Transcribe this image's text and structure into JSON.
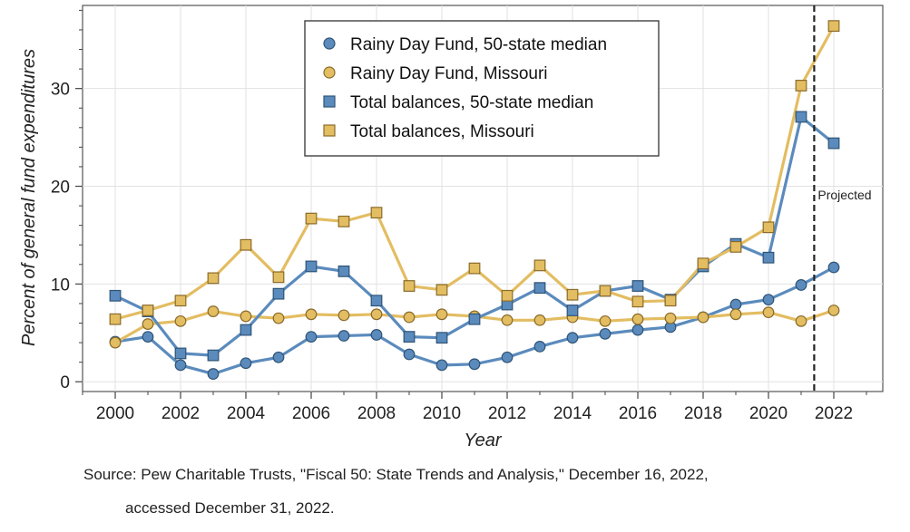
{
  "chart_data": {
    "type": "line",
    "xlabel": "Year",
    "ylabel": "Percent of general fund expenditures",
    "xlim": [
      1999,
      2023.5
    ],
    "ylim": [
      -1,
      38.5
    ],
    "x_ticks": [
      2000,
      2002,
      2004,
      2006,
      2008,
      2010,
      2012,
      2014,
      2016,
      2018,
      2020,
      2022
    ],
    "y_ticks": [
      0,
      10,
      20,
      30
    ],
    "grid": true,
    "legend_position": "top-center",
    "x": [
      2000,
      2001,
      2002,
      2003,
      2004,
      2005,
      2006,
      2007,
      2008,
      2009,
      2010,
      2011,
      2012,
      2013,
      2014,
      2015,
      2016,
      2017,
      2018,
      2019,
      2020,
      2021,
      2022
    ],
    "series": [
      {
        "name": "Rainy Day Fund, 50-state median",
        "marker": "circle",
        "color": "#5b8bbd",
        "values": [
          4.1,
          4.6,
          1.7,
          0.8,
          1.9,
          2.5,
          4.6,
          4.7,
          4.8,
          2.8,
          1.7,
          1.8,
          2.5,
          3.6,
          4.5,
          4.9,
          5.3,
          5.6,
          6.6,
          7.9,
          8.4,
          9.9,
          11.7
        ]
      },
      {
        "name": "Rainy Day Fund, Missouri",
        "marker": "circle",
        "color": "#e3bd62",
        "values": [
          4.0,
          5.9,
          6.2,
          7.2,
          6.7,
          6.5,
          6.9,
          6.8,
          6.9,
          6.6,
          6.9,
          6.7,
          6.3,
          6.3,
          6.6,
          6.2,
          6.4,
          6.5,
          6.6,
          6.9,
          7.1,
          6.2,
          7.3
        ]
      },
      {
        "name": "Total balances, 50-state median",
        "marker": "square",
        "color": "#5b8bbd",
        "values": [
          8.8,
          7.2,
          2.9,
          2.7,
          5.3,
          9.0,
          11.8,
          11.3,
          8.3,
          4.6,
          4.5,
          6.4,
          7.9,
          9.6,
          7.3,
          9.3,
          9.8,
          8.4,
          11.8,
          14.1,
          12.7,
          27.1,
          24.4
        ]
      },
      {
        "name": "Total balances, Missouri",
        "marker": "square",
        "color": "#e3bd62",
        "values": [
          6.4,
          7.3,
          8.3,
          10.6,
          14.0,
          10.7,
          16.7,
          16.4,
          17.3,
          9.8,
          9.4,
          11.6,
          8.8,
          11.9,
          8.9,
          9.3,
          8.2,
          8.3,
          12.1,
          13.8,
          15.8,
          30.3,
          36.4
        ]
      }
    ],
    "annotation": {
      "text": "Projected",
      "x": 2021.4
    }
  },
  "source": {
    "line1": "Source: Pew Charitable Trusts, \"Fiscal 50: State Trends and Analysis,\" December 16, 2022,",
    "line2": "accessed December 31, 2022."
  }
}
